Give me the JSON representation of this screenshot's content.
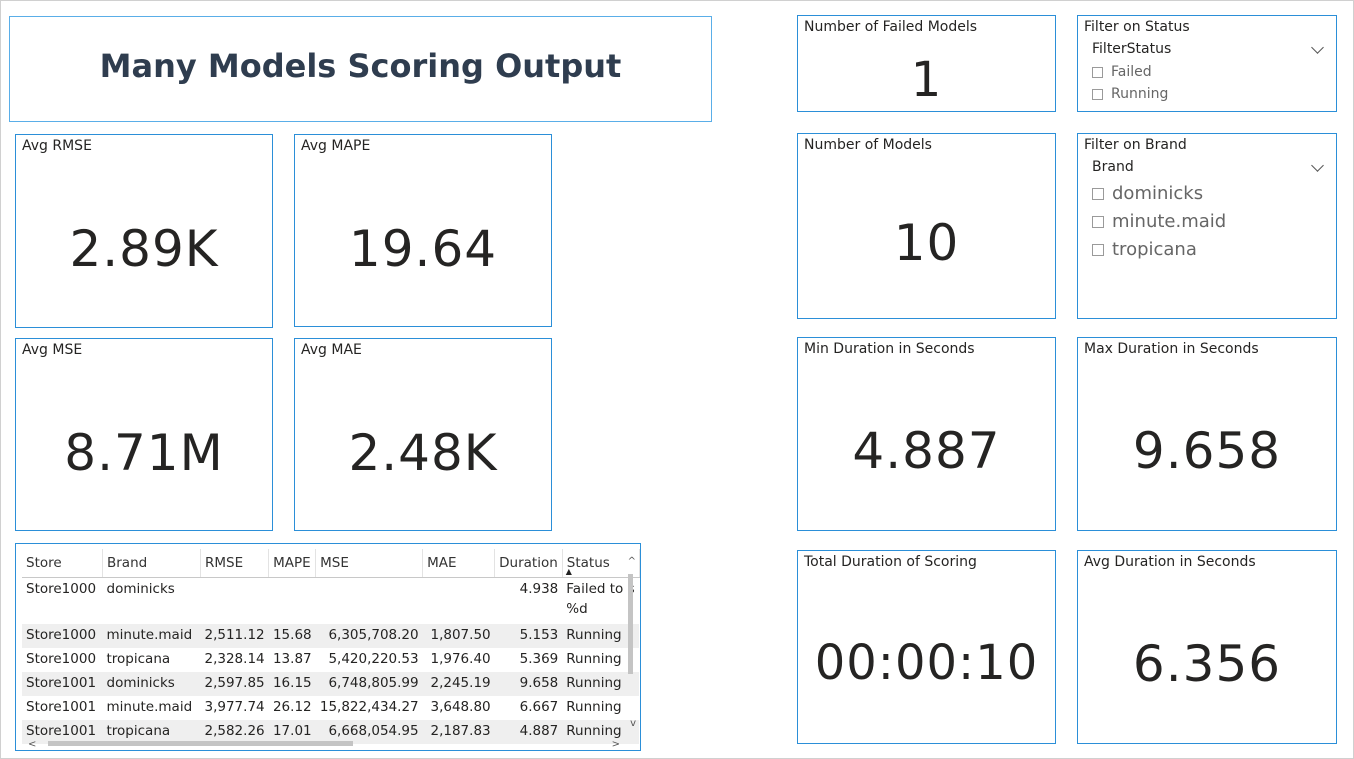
{
  "title": "Many Models Scoring Output",
  "kpis": {
    "avg_rmse": {
      "label": "Avg RMSE",
      "value": "2.89K"
    },
    "avg_mape": {
      "label": "Avg MAPE",
      "value": "19.64"
    },
    "avg_mse": {
      "label": "Avg MSE",
      "value": "8.71M"
    },
    "avg_mae": {
      "label": "Avg MAE",
      "value": "2.48K"
    },
    "failed_models": {
      "label": "Number of Failed Models",
      "value": "1"
    },
    "num_models": {
      "label": "Number of Models",
      "value": "10"
    },
    "min_duration": {
      "label": "Min Duration in Seconds",
      "value": "4.887"
    },
    "max_duration": {
      "label": "Max Duration in Seconds",
      "value": "9.658"
    },
    "total_duration": {
      "label": "Total Duration of Scoring",
      "value": "00:00:10"
    },
    "avg_duration": {
      "label": "Avg Duration in Seconds",
      "value": "6.356"
    }
  },
  "status_filter": {
    "title": "Filter on Status",
    "field": "FilterStatus",
    "options": [
      "Failed",
      "Running"
    ]
  },
  "brand_filter": {
    "title": "Filter on Brand",
    "field": "Brand",
    "options": [
      "dominicks",
      "minute.maid",
      "tropicana"
    ]
  },
  "table": {
    "columns": [
      "Store",
      "Brand",
      "RMSE",
      "MAPE",
      "MSE",
      "MAE",
      "Duration",
      "Status"
    ],
    "rows": [
      [
        "Store1000",
        "dominicks",
        "",
        "",
        "",
        "",
        "4.938",
        "Failed to s\n%d"
      ],
      [
        "Store1000",
        "minute.maid",
        "2,511.12",
        "15.68",
        "6,305,708.20",
        "1,807.50",
        "5.153",
        "Running"
      ],
      [
        "Store1000",
        "tropicana",
        "2,328.14",
        "13.87",
        "5,420,220.53",
        "1,976.40",
        "5.369",
        "Running"
      ],
      [
        "Store1001",
        "dominicks",
        "2,597.85",
        "16.15",
        "6,748,805.99",
        "2,245.19",
        "9.658",
        "Running"
      ],
      [
        "Store1001",
        "minute.maid",
        "3,977.74",
        "26.12",
        "15,822,434.27",
        "3,648.80",
        "6.667",
        "Running"
      ],
      [
        "Store1001",
        "tropicana",
        "2,582.26",
        "17.01",
        "6,668,054.95",
        "2,187.83",
        "4.887",
        "Running"
      ]
    ]
  }
}
